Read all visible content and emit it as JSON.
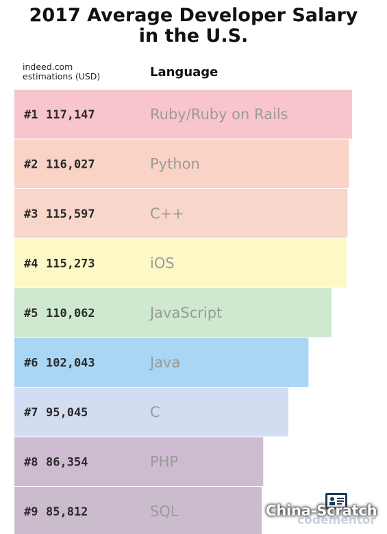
{
  "title_line1": "2017 Average Developer Salary",
  "title_line2": "in the U.S.",
  "header": {
    "source_line1": "indeed.com",
    "source_line2": "estimations (USD)",
    "language_label": "Language"
  },
  "chart_data": {
    "type": "bar",
    "orientation": "horizontal",
    "title": "2017 Average Developer Salary in the U.S.",
    "categories": [
      "Ruby/Ruby on Rails",
      "Python",
      "C++",
      "iOS",
      "JavaScript",
      "Java",
      "C",
      "PHP",
      "SQL"
    ],
    "ranks": [
      "#1",
      "#2",
      "#3",
      "#4",
      "#5",
      "#6",
      "#7",
      "#8",
      "#9"
    ],
    "value_labels": [
      "117,147",
      "116,027",
      "115,597",
      "115,273",
      "110,062",
      "102,043",
      "95,045",
      "86,354",
      "85,812"
    ],
    "values": [
      117147,
      116027,
      115597,
      115273,
      110062,
      102043,
      95045,
      86354,
      85812
    ],
    "colors": [
      "#f8c5cc",
      "#f8d3c6",
      "#f8d6c9",
      "#fdf9c6",
      "#cfe9d1",
      "#a8d6f4",
      "#d3ddf1",
      "#cdbccf",
      "#cbbccd"
    ]
  },
  "footer": {
    "brand": "codementor",
    "watermark": "China-Scratch"
  }
}
